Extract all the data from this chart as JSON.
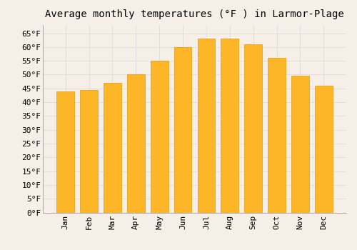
{
  "title": "Average monthly temperatures (°F ) in Larmor-Plage",
  "months": [
    "Jan",
    "Feb",
    "Mar",
    "Apr",
    "May",
    "Jun",
    "Jul",
    "Aug",
    "Sep",
    "Oct",
    "Nov",
    "Dec"
  ],
  "values": [
    44,
    44.5,
    47,
    50,
    55,
    60,
    63,
    63,
    61,
    56,
    49.5,
    46
  ],
  "bar_color_top": "#FDB628",
  "bar_color_bottom": "#F5A800",
  "bar_edge_color": "#E8960A",
  "background_color": "#F5EFE8",
  "plot_bg_color": "#F5EFE8",
  "grid_color": "#DDDDDD",
  "ylim": [
    0,
    68
  ],
  "yticks": [
    0,
    5,
    10,
    15,
    20,
    25,
    30,
    35,
    40,
    45,
    50,
    55,
    60,
    65
  ],
  "title_fontsize": 10,
  "tick_fontsize": 8,
  "tick_font_family": "monospace",
  "bar_width": 0.75
}
